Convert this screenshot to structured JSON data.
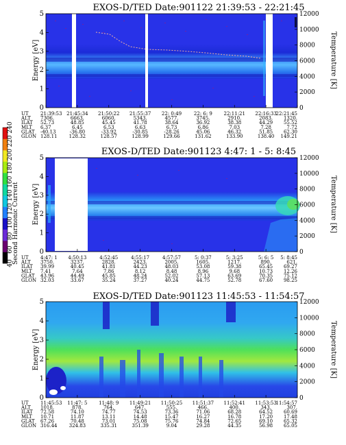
{
  "colors": {
    "base_blue": "#2832e8",
    "cyan_band": "#2aa8ff",
    "green": "#3fe05c",
    "yellow": "#e8f020",
    "gap": "#ffffff",
    "band_dark": "#1418b8"
  },
  "colorbar": {
    "title": "Second Harmonic Current",
    "ticks": [
      "40",
      "60",
      "80",
      "100",
      "120",
      "140",
      "160",
      "180",
      "200",
      "220",
      "240"
    ],
    "colors": [
      "#000000",
      "#6a0070",
      "#6a2ad8",
      "#1810c8",
      "#2080ff",
      "#10c8e0",
      "#10d8a0",
      "#30e040",
      "#a8ec10",
      "#f0e820",
      "#f08010",
      "#e01010"
    ]
  },
  "panels": [
    {
      "title": "EXOS-D/TED   Date:901122   21:39:53 - 22:21:45",
      "ylabel": "Energy [eV]",
      "y2label": "Temperature [K]",
      "yticks": [
        "0",
        "1",
        "2",
        "3",
        "4",
        "5"
      ],
      "y2ticks": [
        "0",
        "2000",
        "4000",
        "6000",
        "8000",
        "10000",
        "12000"
      ],
      "table": {
        "labels": [
          "UT",
          "ALT",
          "ILAT",
          "MLT",
          "GLAT",
          "GLON"
        ],
        "columns": [
          [
            "21:39:53",
            "7306.",
            "52.73",
            "6.37",
            "-40.13",
            "128.11"
          ],
          [
            "21:45:34",
            "6663.",
            "48.85",
            "6.45",
            "-36.80",
            "128.32"
          ],
          [
            "21:50:22",
            "6060.",
            "45.45",
            "6.53",
            "-33.92",
            "128.57"
          ],
          [
            "21:55:37",
            "5343.",
            "41.78",
            "6.63",
            "-30.85",
            "128.99"
          ],
          [
            "22: 0:49",
            "4577.",
            "38.64",
            "6.73",
            "-28.26",
            "129.66"
          ],
          [
            "22: 6: 9",
            "3745.",
            "36.92",
            "6.86",
            "45.06",
            "131.62"
          ],
          [
            "22:11:21",
            "2910.",
            "38.38",
            "7.03",
            "46.32",
            "133.90"
          ],
          [
            "22:16:33",
            "2083.",
            "44.29",
            "7.28",
            "51.85",
            "138.40"
          ],
          [
            "22:21:45",
            "1320.",
            "55.52",
            "7.72",
            "62.30",
            "149.21"
          ]
        ]
      }
    },
    {
      "title": "EXOS-D/TED   Date:901123  4:47: 1 - 5: 8:45",
      "ylabel": "Energy [eV]",
      "y2label": "Temperature [K]",
      "yticks": [
        "0",
        "1",
        "2",
        "3",
        "4",
        "5"
      ],
      "y2ticks": [
        "0",
        "2000",
        "4000",
        "6000",
        "8000",
        "10000",
        "12000"
      ],
      "table": {
        "labels": [
          "UT",
          "ALT",
          "ILAT",
          "MLT",
          "GLAT",
          "GLON"
        ],
        "columns": [
          [
            "4:47: 1",
            "3750.",
            "39.99",
            "7.41",
            "43.96",
            "32.03"
          ],
          [
            "4:50:13",
            "3237.",
            "40.45",
            "7.64",
            "44.49",
            "33.67"
          ],
          [
            "4:52:45",
            "2828.",
            "41.81",
            "7.86",
            "45.85",
            "35.24"
          ],
          [
            "4:55:17",
            "2423.",
            "44.23",
            "8.12",
            "48.24",
            "37.27"
          ],
          [
            "4:57:57",
            "2005.",
            "48.03",
            "8.48",
            "52.02",
            "40.24"
          ],
          [
            "5: 0:37",
            "1605.",
            "53.08",
            "8.96",
            "57.13",
            "44.75"
          ],
          [
            "5: 3:25",
            "1217.",
            "59.38",
            "9.68",
            "63.69",
            "52.78"
          ],
          [
            "5: 6: 5",
            "890.",
            "65.45",
            "10.73",
            "70.35",
            "67.60"
          ],
          [
            "5: 8:45",
            "621.",
            "69.27",
            "12.26",
            "75.12",
            "98.25"
          ]
        ]
      }
    },
    {
      "title": "EXOS-D/TED   Date:901123   11:45:53 - 11:54:57",
      "ylabel": "Energy [eV]",
      "y2label": "Temperature [K]",
      "yticks": [
        "0",
        "1",
        "2",
        "3",
        "4",
        "5"
      ],
      "y2ticks": [
        "0",
        "2000",
        "4000",
        "6000",
        "8000",
        "10000",
        "12000"
      ],
      "table": {
        "labels": [
          "UT",
          "ALT",
          "ILAT",
          "MLT",
          "GLAT",
          "GLON"
        ],
        "columns": [
          [
            "11:45:53",
            "1018.",
            "72.58",
            "10.71",
            "67.26",
            "316.44"
          ],
          [
            "11:47: 5",
            "878.",
            "74.10",
            "11.87",
            "70.48",
            "324.83"
          ],
          [
            "11:48: 9",
            "764.",
            "74.77",
            "13.11",
            "73.01",
            "335.31"
          ],
          [
            "11:49:21",
            "647.",
            "74.53",
            "14.48",
            "75.08",
            "351.39"
          ],
          [
            "11:50:25",
            "555.",
            "73.36",
            "15.47",
            "75.76",
            "9.04"
          ],
          [
            "11:51:37",
            "466.",
            "71.06",
            "16.27",
            "74.84",
            "29.28"
          ],
          [
            "11:52:41",
            "400.",
            "68.28",
            "16.78",
            "72.65",
            "44.35"
          ],
          [
            "11:53:53",
            "343.",
            "64.52",
            "17.20",
            "69.10",
            "56.98"
          ],
          [
            "11:54:57",
            "307.",
            "60.69",
            "17.48",
            "65.32",
            "65.05"
          ]
        ]
      }
    }
  ],
  "chart_data": [
    {
      "type": "heatmap",
      "title": "EXOS-D/TED   Date:901122   21:39:53 - 22:21:45",
      "xlabel": "UT",
      "ylabel": "Energy [eV]",
      "y2label": "Temperature [K]",
      "ylim": [
        0,
        5
      ],
      "y2lim": [
        0,
        12000
      ],
      "x_ticks": [
        "21:39:53",
        "21:45:34",
        "21:50:22",
        "21:55:37",
        "22: 0:49",
        "22: 6: 9",
        "22:11:21",
        "22:16:33",
        "22:21:45"
      ],
      "data_gaps_ut": [
        [
          "21:45:00",
          "21:45:30"
        ],
        [
          "21:55:20",
          "21:55:50"
        ],
        [
          "22:13:40",
          "22:14:40"
        ]
      ],
      "enhanced_band_energy_eV": [
        2.0,
        3.4
      ],
      "peak_band_energy_eV": 2.7
    },
    {
      "type": "heatmap",
      "title": "EXOS-D/TED   Date:901123  4:47: 1 - 5: 8:45",
      "xlabel": "UT",
      "ylabel": "Energy [eV]",
      "y2label": "Temperature [K]",
      "ylim": [
        0,
        5
      ],
      "y2lim": [
        0,
        12000
      ],
      "x_ticks": [
        "4:47: 1",
        "4:50:13",
        "4:52:45",
        "4:55:17",
        "4:57:57",
        "5: 0:37",
        "5: 3:25",
        "5: 6: 5",
        "5: 8:45"
      ],
      "data_gaps_ut": [
        [
          "4:47:20",
          "4:50:00"
        ]
      ],
      "enhanced_band_energy_eV": [
        1.9,
        3.0
      ],
      "peak_band_energy_eV": 2.4
    },
    {
      "type": "heatmap",
      "title": "EXOS-D/TED   Date:901123   11:45:53 - 11:54:57",
      "xlabel": "UT",
      "ylabel": "Energy [eV]",
      "y2label": "Temperature [K]",
      "ylim": [
        0,
        5
      ],
      "y2lim": [
        0,
        12000
      ],
      "x_ticks": [
        "11:45:53",
        "11:47: 5",
        "11:48: 9",
        "11:49:21",
        "11:50:25",
        "11:51:37",
        "11:52:41",
        "11:53:53",
        "11:54:57"
      ],
      "data_gaps_ut": [],
      "enhanced_band_energy_eV": [
        1.0,
        3.3
      ],
      "peak_band_energy_eV": 2.0
    }
  ]
}
